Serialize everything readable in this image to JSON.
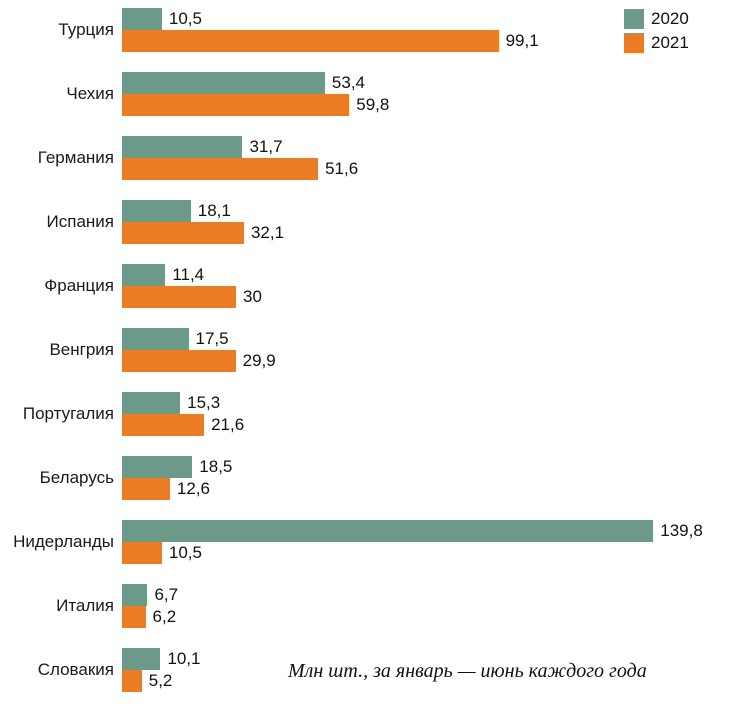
{
  "chart_data": {
    "type": "bar",
    "orientation": "horizontal",
    "title": "",
    "xlabel": "",
    "ylabel": "",
    "xlim": [
      0,
      140
    ],
    "grid": false,
    "legend_position": "top-right",
    "caption": "Млн шт., за январь — июнь каждого года",
    "categories": [
      "Турция",
      "Чехия",
      "Германия",
      "Испания",
      "Франция",
      "Венгрия",
      "Португалия",
      "Беларусь",
      "Нидерланды",
      "Италия",
      "Словакия"
    ],
    "series": [
      {
        "name": "2020",
        "color": "#6d9a88",
        "values": [
          10.5,
          53.4,
          31.7,
          18.1,
          11.4,
          17.5,
          15.3,
          18.5,
          139.8,
          6.7,
          10.1
        ],
        "labels": [
          "10,5",
          "53,4",
          "31,7",
          "18,1",
          "11,4",
          "17,5",
          "15,3",
          "18,5",
          "139,8",
          "6,7",
          "10,1"
        ]
      },
      {
        "name": "2021",
        "color": "#ec7c23",
        "values": [
          99.1,
          59.8,
          51.6,
          32.1,
          30,
          29.9,
          21.6,
          12.6,
          10.5,
          6.2,
          5.2
        ],
        "labels": [
          "99,1",
          "59,8",
          "51,6",
          "32,1",
          "30",
          "29,9",
          "21,6",
          "12,6",
          "10,5",
          "6,2",
          "5,2"
        ]
      }
    ]
  },
  "legend": {
    "items": [
      {
        "label": "2020",
        "color": "#6d9a88"
      },
      {
        "label": "2021",
        "color": "#ec7c23"
      }
    ]
  }
}
